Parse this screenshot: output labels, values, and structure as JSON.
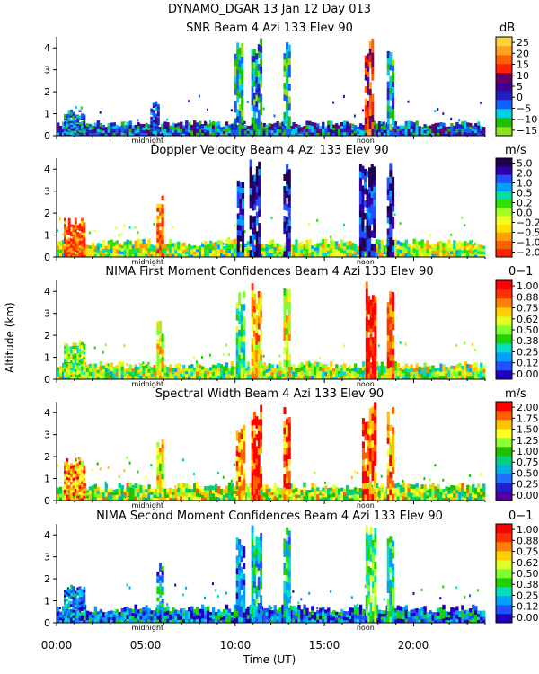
{
  "header": {
    "title": "DYNAMO_DGAR  13 Jan 12 Day 013"
  },
  "y_axis_label": "Altitude (km)",
  "x_axis": {
    "label": "Time (UT)",
    "ticks": [
      "00:00",
      "05:00",
      "10:00",
      "15:00",
      "20:00"
    ],
    "range_hours": [
      0,
      24
    ],
    "markers": [
      {
        "label": "midnight",
        "hour": 5.1
      },
      {
        "label": "noon",
        "hour": 17.3
      }
    ]
  },
  "colors": {
    "ramp_snr": [
      "#8fe020",
      "#20c000",
      "#00d0e0",
      "#1060ff",
      "#2020c0",
      "#400090",
      "#6a0060",
      "#ff2000",
      "#ff6000",
      "#ffa020",
      "#ffd040"
    ],
    "ramp_vel": [
      "#ff2000",
      "#ff6000",
      "#ffa000",
      "#ffe000",
      "#f0ff20",
      "#a0ff20",
      "#30e000",
      "#00e0a0",
      "#00a0ff",
      "#2050ff",
      "#3000b0",
      "#200050"
    ],
    "ramp_conf": [
      "#2000c0",
      "#2050ff",
      "#00a0ff",
      "#00e0c0",
      "#20d000",
      "#80ff30",
      "#e0ff20",
      "#ffd000",
      "#ff8000",
      "#ff3000",
      "#ff0000"
    ],
    "ramp_width": [
      "#5000a0",
      "#2020d0",
      "#2070ff",
      "#00b0e0",
      "#00d080",
      "#20c000",
      "#90ff30",
      "#ffff20",
      "#ffc000",
      "#ff6000",
      "#ff0000"
    ]
  },
  "chart_data": [
    {
      "type": "heatmap",
      "title": "SNR Beam 4 Azi 133 Elev 90",
      "ylabel": "Altitude (km)",
      "xlabel": "",
      "ylim": [
        0,
        4.5
      ],
      "xlim": [
        0,
        24
      ],
      "y_ticks": [
        "0",
        "1",
        "2",
        "3",
        "4"
      ],
      "colorbar": {
        "unit": "dB",
        "ramp": "ramp_snr",
        "labels": [
          "25",
          "20",
          "15",
          "10",
          "5",
          "0",
          "−5",
          "−10",
          "−15"
        ]
      },
      "profile": {
        "base_km": 0.5,
        "strength": 0.35
      },
      "features": [
        {
          "x": 1.0,
          "w": 1.2,
          "top": 1.2,
          "v": 0.3
        },
        {
          "x": 5.5,
          "w": 0.5,
          "top": 1.6,
          "v": 0.35
        },
        {
          "x": 10.2,
          "w": 0.5,
          "top": 4.4,
          "v": 0.2
        },
        {
          "x": 11.2,
          "w": 0.6,
          "top": 4.5,
          "v": 0.25
        },
        {
          "x": 12.9,
          "w": 0.4,
          "top": 4.4,
          "v": 0.2
        },
        {
          "x": 17.5,
          "w": 0.5,
          "top": 4.5,
          "v": 0.7
        },
        {
          "x": 18.7,
          "w": 0.4,
          "top": 4.0,
          "v": 0.25
        }
      ]
    },
    {
      "type": "heatmap",
      "title": "Doppler Velocity Beam 4 Azi 133 Elev 90",
      "ylabel": "Altitude (km)",
      "xlabel": "",
      "ylim": [
        0,
        4.5
      ],
      "xlim": [
        0,
        24
      ],
      "y_ticks": [
        "0",
        "1",
        "2",
        "3",
        "4"
      ],
      "colorbar": {
        "unit": "m/s",
        "ramp": "ramp_vel",
        "labels": [
          "5.0",
          "2.0",
          "1.0",
          "0.5",
          "0.2",
          "0.0",
          "−0.2",
          "−0.5",
          "−1.0",
          "−2.0"
        ]
      },
      "profile": {
        "base_km": 0.6,
        "strength": 0.45
      },
      "features": [
        {
          "x": 1.0,
          "w": 1.2,
          "top": 1.8,
          "v": 0.1
        },
        {
          "x": 5.8,
          "w": 0.4,
          "top": 2.9,
          "v": 0.15
        },
        {
          "x": 10.3,
          "w": 0.4,
          "top": 4.0,
          "v": 0.85
        },
        {
          "x": 11.1,
          "w": 0.6,
          "top": 4.5,
          "v": 0.9
        },
        {
          "x": 12.9,
          "w": 0.4,
          "top": 4.4,
          "v": 0.9
        },
        {
          "x": 17.4,
          "w": 0.9,
          "top": 4.5,
          "v": 0.9
        },
        {
          "x": 18.7,
          "w": 0.4,
          "top": 4.3,
          "v": 0.9
        }
      ]
    },
    {
      "type": "heatmap",
      "title": "NIMA First Moment Confidences Beam 4 Azi 133 Elev 90",
      "ylabel": "Altitude (km)",
      "xlabel": "",
      "ylim": [
        0,
        4.5
      ],
      "xlim": [
        0,
        24
      ],
      "y_ticks": [
        "0",
        "1",
        "2",
        "3",
        "4"
      ],
      "colorbar": {
        "unit": "0−1",
        "ramp": "ramp_conf",
        "labels": [
          "1.00",
          "0.88",
          "0.75",
          "0.62",
          "0.50",
          "0.38",
          "0.25",
          "0.12",
          "0.00"
        ]
      },
      "profile": {
        "base_km": 0.6,
        "strength": 0.5
      },
      "features": [
        {
          "x": 1.0,
          "w": 1.2,
          "top": 1.8,
          "v": 0.5
        },
        {
          "x": 5.8,
          "w": 0.4,
          "top": 2.9,
          "v": 0.6
        },
        {
          "x": 10.3,
          "w": 0.5,
          "top": 4.0,
          "v": 0.4
        },
        {
          "x": 11.2,
          "w": 0.6,
          "top": 4.5,
          "v": 0.7
        },
        {
          "x": 12.9,
          "w": 0.4,
          "top": 4.4,
          "v": 0.6
        },
        {
          "x": 17.6,
          "w": 0.6,
          "top": 4.5,
          "v": 0.95
        },
        {
          "x": 18.7,
          "w": 0.4,
          "top": 4.3,
          "v": 0.8
        }
      ]
    },
    {
      "type": "heatmap",
      "title": "Spectral Width Beam 4 Azi 133 Elev 90",
      "ylabel": "Altitude (km)",
      "xlabel": "",
      "ylim": [
        0,
        4.5
      ],
      "xlim": [
        0,
        24
      ],
      "y_ticks": [
        "0",
        "1",
        "2",
        "3",
        "4"
      ],
      "colorbar": {
        "unit": "m/s",
        "ramp": "ramp_width",
        "labels": [
          "2.00",
          "1.75",
          "1.50",
          "1.25",
          "1.00",
          "0.75",
          "0.50",
          "0.25",
          "0.00"
        ]
      },
      "profile": {
        "base_km": 0.6,
        "strength": 0.6
      },
      "features": [
        {
          "x": 1.0,
          "w": 1.2,
          "top": 2.0,
          "v": 0.8
        },
        {
          "x": 5.8,
          "w": 0.4,
          "top": 2.9,
          "v": 0.7
        },
        {
          "x": 10.3,
          "w": 0.5,
          "top": 3.5,
          "v": 0.8
        },
        {
          "x": 11.2,
          "w": 0.6,
          "top": 4.5,
          "v": 0.9
        },
        {
          "x": 12.9,
          "w": 0.4,
          "top": 4.4,
          "v": 0.85
        },
        {
          "x": 17.5,
          "w": 0.8,
          "top": 4.5,
          "v": 0.85
        },
        {
          "x": 18.7,
          "w": 0.4,
          "top": 4.3,
          "v": 0.8
        }
      ]
    },
    {
      "type": "heatmap",
      "title": "NIMA Second Moment Confidences Beam 4 Azi 133 Elev 90",
      "ylabel": "Altitude (km)",
      "xlabel": "Time (UT)",
      "ylim": [
        0,
        4.5
      ],
      "xlim": [
        0,
        24
      ],
      "y_ticks": [
        "0",
        "1",
        "2",
        "3",
        "4"
      ],
      "colorbar": {
        "unit": "0−1",
        "ramp": "ramp_conf",
        "labels": [
          "1.00",
          "0.88",
          "0.75",
          "0.62",
          "0.50",
          "0.38",
          "0.25",
          "0.12",
          "0.00"
        ]
      },
      "profile": {
        "base_km": 0.6,
        "strength": 0.2
      },
      "features": [
        {
          "x": 1.0,
          "w": 1.2,
          "top": 1.8,
          "v": 0.2
        },
        {
          "x": 5.8,
          "w": 0.4,
          "top": 2.9,
          "v": 0.25
        },
        {
          "x": 10.3,
          "w": 0.5,
          "top": 4.0,
          "v": 0.2
        },
        {
          "x": 11.2,
          "w": 0.6,
          "top": 4.5,
          "v": 0.3
        },
        {
          "x": 12.9,
          "w": 0.4,
          "top": 4.4,
          "v": 0.3
        },
        {
          "x": 17.6,
          "w": 0.6,
          "top": 4.5,
          "v": 0.45
        },
        {
          "x": 18.7,
          "w": 0.4,
          "top": 4.3,
          "v": 0.35
        }
      ]
    }
  ]
}
